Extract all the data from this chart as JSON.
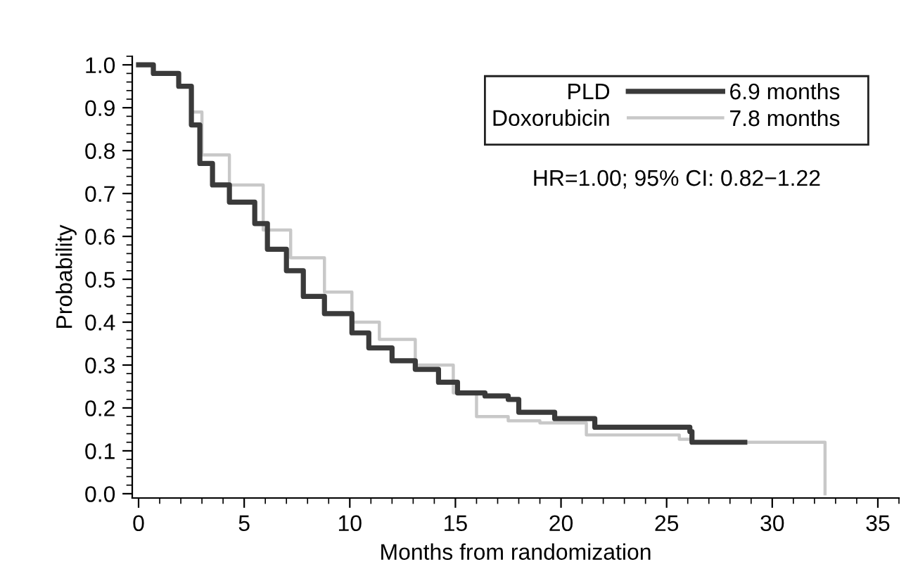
{
  "chart_data": {
    "type": "step",
    "xlabel": "Months from randomization",
    "ylabel": "Probability",
    "xlim": [
      -0.3,
      36
    ],
    "ylim": [
      -0.01,
      1.02
    ],
    "xticks": [
      0,
      5,
      10,
      15,
      20,
      25,
      30,
      35
    ],
    "yticks": [
      {
        "value": 0,
        "label": "0.0"
      },
      {
        "value": 0.1,
        "label": "0.1"
      },
      {
        "value": 0.2,
        "label": "0.2"
      },
      {
        "value": 0.3,
        "label": "0.3"
      },
      {
        "value": 0.4,
        "label": "0.4"
      },
      {
        "value": 0.5,
        "label": "0.5"
      },
      {
        "value": 0.6,
        "label": "0.6"
      },
      {
        "value": 0.7,
        "label": "0.7"
      },
      {
        "value": 0.8,
        "label": "0.8"
      },
      {
        "value": 0.9,
        "label": "0.9"
      },
      {
        "value": 1.0,
        "label": "1.0"
      }
    ],
    "grid": false,
    "legend": "top right",
    "marker": "none",
    "line_style": "solid",
    "series": [
      {
        "name": "PLD",
        "color": "#3a3a3a",
        "x": [
          0,
          0.7,
          1.9,
          2.5,
          2.9,
          3.5,
          4.3,
          5.5,
          6.1,
          7.0,
          7.8,
          8.8,
          10.1,
          10.9,
          12.0,
          13.1,
          14.2,
          15.1,
          16.4,
          17.5,
          18.0,
          19.7,
          21.6,
          25.6,
          26.1,
          26.2,
          28.7
        ],
        "values": [
          1.0,
          0.98,
          0.95,
          0.86,
          0.77,
          0.72,
          0.68,
          0.63,
          0.57,
          0.52,
          0.46,
          0.42,
          0.375,
          0.34,
          0.31,
          0.29,
          0.26,
          0.235,
          0.228,
          0.22,
          0.19,
          0.175,
          0.155,
          0.155,
          0.145,
          0.12,
          0.12
        ]
      },
      {
        "name": "Doxorubicin",
        "color": "#c8c8c8",
        "x": [
          0,
          0.7,
          1.9,
          2.5,
          3.0,
          4.3,
          5.9,
          7.2,
          8.8,
          10.1,
          11.4,
          13.1,
          14.9,
          16.0,
          17.5,
          19.0,
          21.2,
          25.6,
          26.2,
          32.5,
          32.5
        ],
        "values": [
          1.0,
          0.98,
          0.95,
          0.89,
          0.79,
          0.72,
          0.615,
          0.55,
          0.47,
          0.4,
          0.36,
          0.3,
          0.235,
          0.18,
          0.17,
          0.165,
          0.137,
          0.127,
          0.12,
          0.12,
          0.0
        ]
      }
    ],
    "annotations": [
      "6.9 months",
      "7.8 months",
      "HR=1.00; 95% CI: 0.82−1.22"
    ]
  }
}
